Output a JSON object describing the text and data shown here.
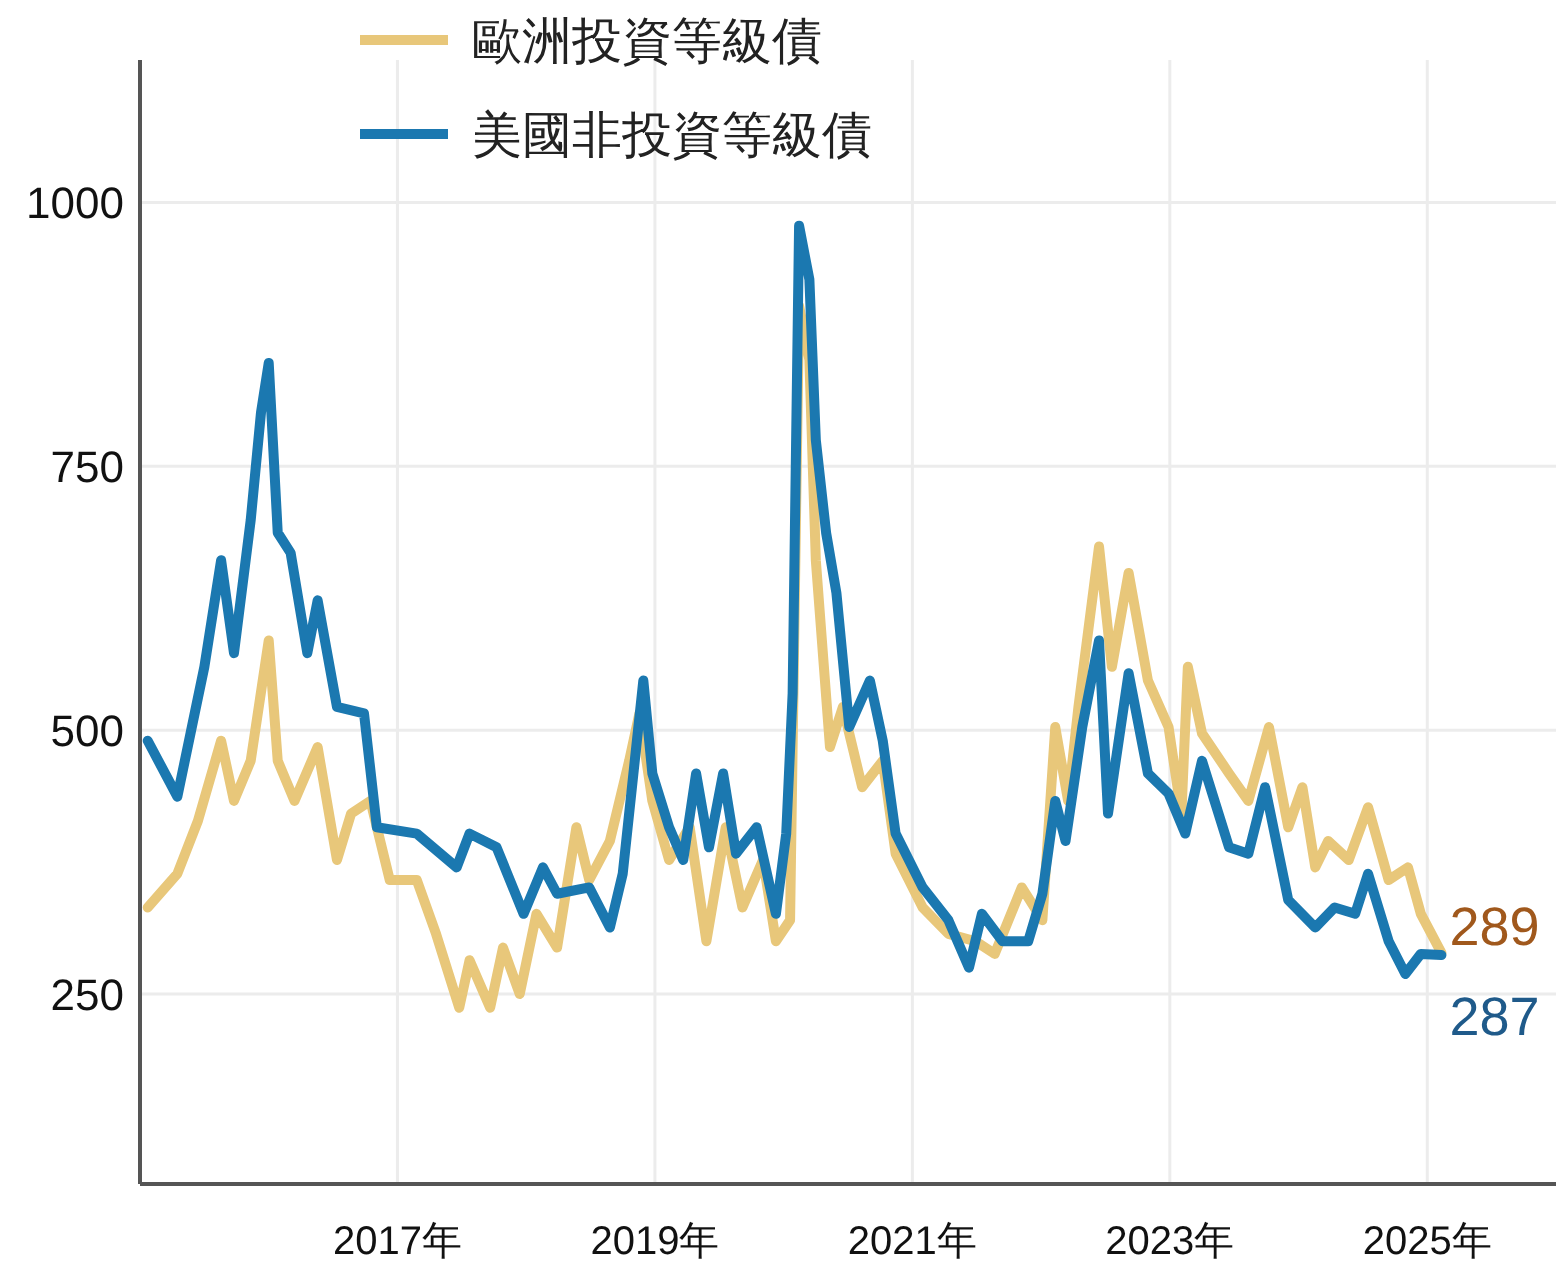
{
  "chart_data": {
    "type": "line",
    "x": [
      2015.06,
      2015.29,
      2015.5,
      2015.63,
      2015.73,
      2015.86,
      2015.94,
      2016.0,
      2016.07,
      2016.17,
      2016.3,
      2016.38,
      2016.53,
      2016.74,
      2016.84,
      2017.15,
      2017.46,
      2017.56,
      2017.77,
      2017.98,
      2018.13,
      2018.24,
      2018.49,
      2018.65,
      2018.75,
      2018.91,
      2018.98,
      2019.11,
      2019.22,
      2019.32,
      2019.42,
      2019.53,
      2019.63,
      2019.79,
      2019.94,
      2020.02,
      2020.07,
      2020.12,
      2020.2,
      2020.25,
      2020.33,
      2020.41,
      2020.51,
      2020.67,
      2020.77,
      2020.87,
      2021.08,
      2021.28,
      2021.44,
      2021.54,
      2021.7,
      2021.9,
      2022.01,
      2022.11,
      2022.19,
      2022.32,
      2022.45,
      2022.52,
      2022.68,
      2022.83,
      2022.99,
      2023.12,
      2023.25,
      2023.46,
      2023.61,
      2023.74,
      2023.92,
      2024.13,
      2024.28,
      2024.44,
      2024.54,
      2024.7,
      2024.83,
      2024.95,
      2025.11
    ],
    "series": [
      {
        "name": "歐洲投資等級債",
        "color": "#e8c77a",
        "x": [
          2015.06,
          2015.29,
          2015.45,
          2015.63,
          2015.73,
          2015.86,
          2016.0,
          2016.07,
          2016.2,
          2016.38,
          2016.53,
          2016.64,
          2016.79,
          2016.94,
          2017.15,
          2017.3,
          2017.48,
          2017.56,
          2017.72,
          2017.82,
          2017.95,
          2018.08,
          2018.24,
          2018.39,
          2018.49,
          2018.65,
          2018.8,
          2018.88,
          2018.98,
          2019.11,
          2019.27,
          2019.4,
          2019.55,
          2019.68,
          2019.84,
          2019.94,
          2020.05,
          2020.12,
          2020.2,
          2020.25,
          2020.36,
          2020.46,
          2020.61,
          2020.77,
          2020.87,
          2021.08,
          2021.28,
          2021.49,
          2021.64,
          2021.85,
          2022.01,
          2022.11,
          2022.21,
          2022.29,
          2022.45,
          2022.55,
          2022.68,
          2022.83,
          2022.99,
          2023.09,
          2023.14,
          2023.25,
          2023.46,
          2023.61,
          2023.77,
          2023.92,
          2024.03,
          2024.13,
          2024.23,
          2024.39,
          2024.54,
          2024.7,
          2024.85,
          2024.95,
          2025.11
        ],
        "values": [
          332,
          364,
          414,
          490,
          433,
          471,
          585,
          471,
          433,
          484,
          377,
          421,
          433,
          358,
          358,
          307,
          237,
          282,
          237,
          294,
          250,
          326,
          294,
          408,
          358,
          395,
          471,
          516,
          433,
          377,
          408,
          300,
          408,
          332,
          377,
          300,
          320,
          902,
          851,
          661,
          484,
          522,
          446,
          471,
          383,
          332,
          307,
          300,
          288,
          351,
          320,
          503,
          433,
          522,
          674,
          560,
          649,
          547,
          503,
          421,
          560,
          497,
          459,
          433,
          503,
          408,
          446,
          370,
          395,
          377,
          427,
          358,
          370,
          326,
          289
        ]
      },
      {
        "name": "美國非投資等級債",
        "color": "#1b78b0",
        "values": [
          490,
          437,
          560,
          661,
          573,
          699,
          801,
          848,
          687,
          668,
          573,
          623,
          522,
          516,
          408,
          402,
          370,
          402,
          389,
          326,
          370,
          345,
          351,
          313,
          364,
          547,
          459,
          408,
          377,
          459,
          389,
          459,
          383,
          408,
          326,
          402,
          535,
          978,
          927,
          775,
          687,
          630,
          503,
          547,
          490,
          402,
          351,
          320,
          275,
          326,
          300,
          300,
          345,
          433,
          395,
          503,
          585,
          421,
          554,
          459,
          440,
          402,
          471,
          389,
          383,
          446,
          339,
          313,
          332,
          326,
          364,
          300,
          269,
          288,
          287
        ]
      }
    ],
    "annotations": [
      {
        "text": "289",
        "x": 2025.11,
        "y": 289
      },
      {
        "text": "287",
        "x": 2025.11,
        "y": 287
      }
    ],
    "xlim": [
      2015,
      2026
    ],
    "xticks": [
      {
        "value": 2017,
        "label": "2017年"
      },
      {
        "value": 2019,
        "label": "2019年"
      },
      {
        "value": 2021,
        "label": "2021年"
      },
      {
        "value": 2023,
        "label": "2023年"
      },
      {
        "value": 2025,
        "label": "2025年"
      }
    ],
    "ylim": [
      70,
      1135
    ],
    "yticks": [
      250,
      500,
      750,
      1000
    ],
    "grid": true,
    "legend": "top"
  }
}
